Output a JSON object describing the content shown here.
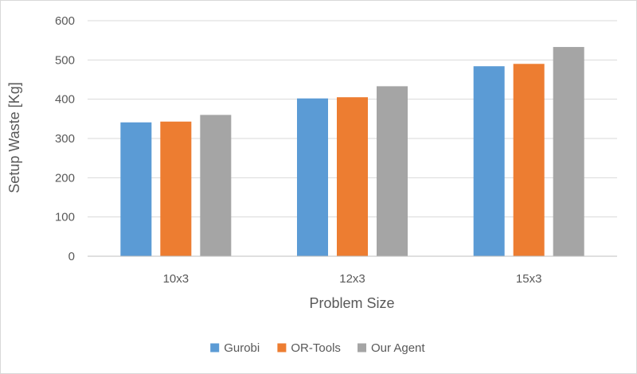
{
  "chart_data": {
    "type": "bar",
    "categories": [
      "10x3",
      "12x3",
      "15x3"
    ],
    "series": [
      {
        "name": "Gurobi",
        "color": "#5b9bd5",
        "values": [
          341,
          402,
          484
        ]
      },
      {
        "name": "OR-Tools",
        "color": "#ed7d31",
        "values": [
          343,
          405,
          490
        ]
      },
      {
        "name": "Our Agent",
        "color": "#a5a5a5",
        "values": [
          360,
          433,
          533
        ]
      }
    ],
    "title": "",
    "xlabel": "Problem Size",
    "ylabel": "Setup Waste [Kg]",
    "ylim": [
      0,
      600
    ],
    "yticks": [
      0,
      100,
      200,
      300,
      400,
      500,
      600
    ],
    "grid": true,
    "legend_position": "bottom"
  }
}
